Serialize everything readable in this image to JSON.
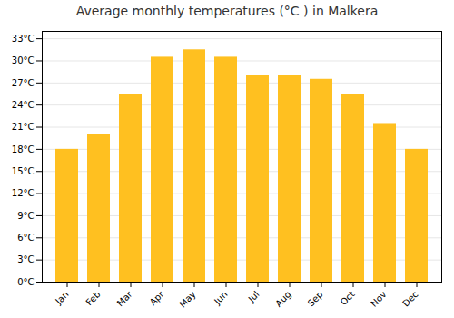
{
  "chart_data": {
    "type": "bar",
    "title": "Average monthly temperatures (°C ) in Malkera",
    "categories": [
      "Jan",
      "Feb",
      "Mar",
      "Apr",
      "May",
      "Jun",
      "Jul",
      "Aug",
      "Sep",
      "Oct",
      "Nov",
      "Dec"
    ],
    "values": [
      18,
      20,
      25.5,
      30.5,
      31.5,
      30.5,
      28,
      28,
      27.5,
      25.5,
      21.5,
      18
    ],
    "color": "#FFC020",
    "ylim": [
      0,
      34
    ],
    "yticks": [
      {
        "value": 0,
        "label": "0°C"
      },
      {
        "value": 3,
        "label": "3°C"
      },
      {
        "value": 6,
        "label": "6°C"
      },
      {
        "value": 9,
        "label": "9°C"
      },
      {
        "value": 12,
        "label": "12°C"
      },
      {
        "value": 15,
        "label": "15°C"
      },
      {
        "value": 18,
        "label": "18°C"
      },
      {
        "value": 21,
        "label": "21°C"
      },
      {
        "value": 24,
        "label": "24°C"
      },
      {
        "value": 27,
        "label": "27°C"
      },
      {
        "value": 30,
        "label": "30°C"
      },
      {
        "value": 33,
        "label": "33°C"
      }
    ],
    "grid": true
  }
}
